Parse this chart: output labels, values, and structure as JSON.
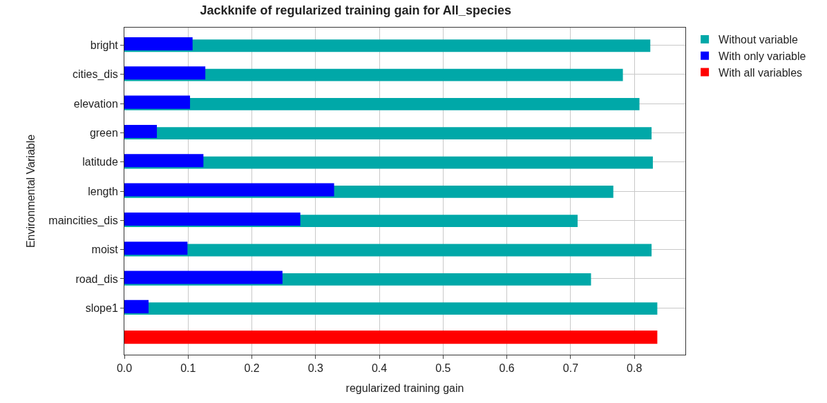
{
  "chart_data": {
    "type": "bar",
    "orientation": "horizontal",
    "title": "Jackknife of regularized training gain for All_species",
    "xlabel": "regularized training gain",
    "ylabel": "Environmental Variable",
    "categories": [
      "bright",
      "cities_dis",
      "elevation",
      "green",
      "latitude",
      "length",
      "maincities_dis",
      "moist",
      "road_dis",
      "slope1",
      null
    ],
    "series": [
      {
        "name": "Without variable",
        "color": "#00a8a8",
        "values": [
          0.825,
          0.782,
          0.808,
          0.827,
          0.829,
          0.767,
          0.711,
          0.827,
          0.732,
          0.836,
          null
        ]
      },
      {
        "name": "With only variable",
        "color": "#0000ff",
        "values": [
          0.107,
          0.127,
          0.103,
          0.051,
          0.124,
          0.329,
          0.276,
          0.099,
          0.248,
          0.038,
          null
        ]
      },
      {
        "name": "With all variables",
        "color": "#ff0000",
        "values": [
          null,
          null,
          null,
          null,
          null,
          null,
          null,
          null,
          null,
          null,
          0.836
        ]
      }
    ],
    "xlim": [
      0,
      0.88
    ],
    "xticks": [
      {
        "value": 0,
        "label": "0.0"
      },
      0.1,
      0.2,
      0.3,
      0.4,
      0.5,
      0.6,
      0.7,
      0.8
    ],
    "grid": true,
    "legend": "top right"
  }
}
